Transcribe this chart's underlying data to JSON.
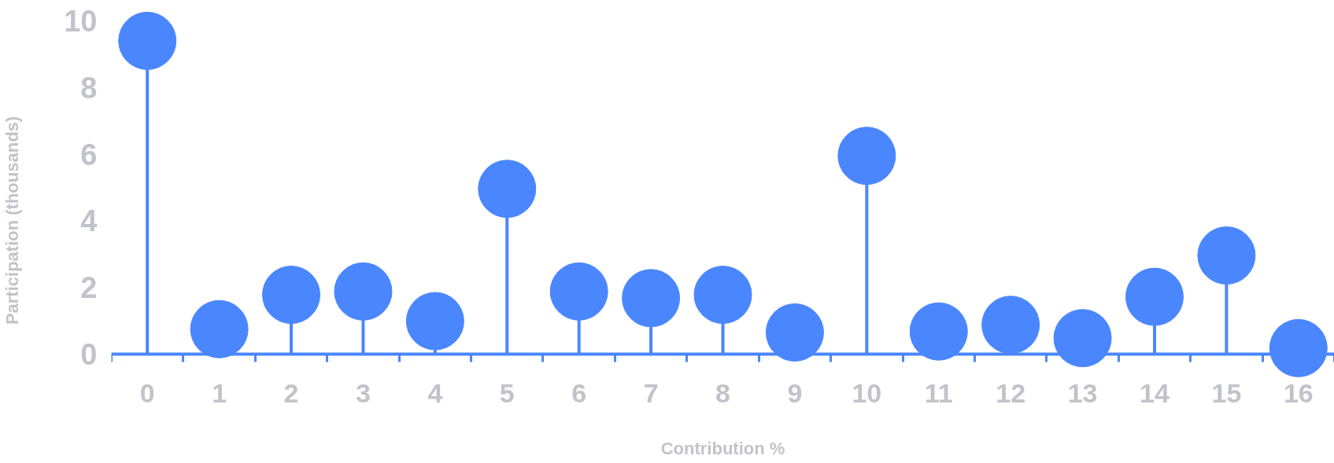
{
  "chart_data": {
    "type": "lollipop",
    "xlabel": "Contribution %",
    "ylabel": "Participation (thousands)",
    "x": [
      0,
      1,
      2,
      3,
      4,
      5,
      6,
      7,
      8,
      9,
      10,
      11,
      12,
      13,
      14,
      15,
      16
    ],
    "series": [
      {
        "color": "#4a86fe",
        "values": [
          9.4,
          0.75,
          1.78,
          1.88,
          0.99,
          4.96,
          1.88,
          1.68,
          1.78,
          0.65,
          5.95,
          0.68,
          0.88,
          0.48,
          1.72,
          2.96,
          0.18
        ]
      }
    ],
    "xlim": [
      -0.5,
      16.5
    ],
    "ylim": [
      0,
      10
    ],
    "xticks": [
      0,
      1,
      2,
      3,
      4,
      5,
      6,
      7,
      8,
      9,
      10,
      11,
      12,
      13,
      14,
      15,
      16
    ],
    "yticks": [
      0,
      2,
      4,
      6,
      8,
      10
    ],
    "marker": "circle",
    "grid": false
  }
}
